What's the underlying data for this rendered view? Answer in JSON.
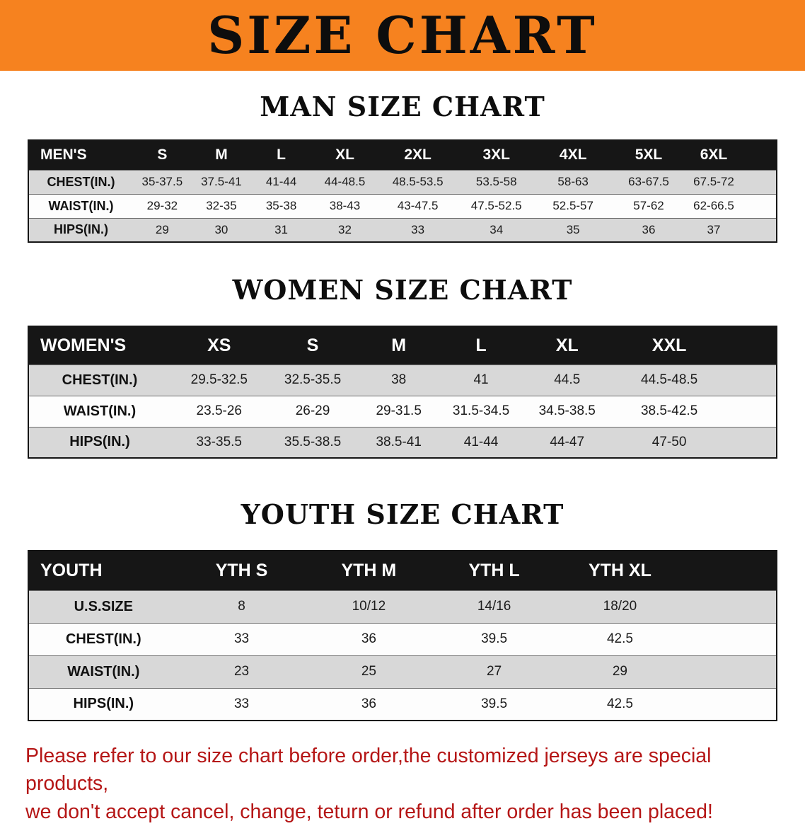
{
  "banner": {
    "title": "SIZE CHART"
  },
  "sections": {
    "men": {
      "heading": "MAN SIZE CHART"
    },
    "women": {
      "heading": "WOMEN SIZE CHART"
    },
    "youth": {
      "heading": "YOUTH SIZE CHART"
    }
  },
  "tables": {
    "men": {
      "header": [
        "MEN'S",
        "S",
        "M",
        "L",
        "XL",
        "2XL",
        "3XL",
        "4XL",
        "5XL",
        "6XL"
      ],
      "rows": [
        [
          "CHEST(IN.)",
          "35-37.5",
          "37.5-41",
          "41-44",
          "44-48.5",
          "48.5-53.5",
          "53.5-58",
          "58-63",
          "63-67.5",
          "67.5-72"
        ],
        [
          "WAIST(IN.)",
          "29-32",
          "32-35",
          "35-38",
          "38-43",
          "43-47.5",
          "47.5-52.5",
          "52.5-57",
          "57-62",
          "62-66.5"
        ],
        [
          "HIPS(IN.)",
          "29",
          "30",
          "31",
          "32",
          "33",
          "34",
          "35",
          "36",
          "37"
        ]
      ]
    },
    "women": {
      "header": [
        "WOMEN'S",
        "XS",
        "S",
        "M",
        "L",
        "XL",
        "XXL"
      ],
      "rows": [
        [
          "CHEST(IN.)",
          "29.5-32.5",
          "32.5-35.5",
          "38",
          "41",
          "44.5",
          "44.5-48.5"
        ],
        [
          "WAIST(IN.)",
          "23.5-26",
          "26-29",
          "29-31.5",
          "31.5-34.5",
          "34.5-38.5",
          "38.5-42.5"
        ],
        [
          "HIPS(IN.)",
          "33-35.5",
          "35.5-38.5",
          "38.5-41",
          "41-44",
          "44-47",
          "47-50"
        ]
      ]
    },
    "youth": {
      "header": [
        "YOUTH",
        "YTH S",
        "YTH M",
        "YTH L",
        "YTH XL"
      ],
      "rows": [
        [
          "U.S.SIZE",
          "8",
          "10/12",
          "14/16",
          "18/20"
        ],
        [
          "CHEST(IN.)",
          "33",
          "36",
          "39.5",
          "42.5"
        ],
        [
          "WAIST(IN.)",
          "23",
          "25",
          "27",
          "29"
        ],
        [
          "HIPS(IN.)",
          "33",
          "36",
          "39.5",
          "42.5"
        ]
      ]
    }
  },
  "disclaimer": {
    "line1": "Please refer to our size chart before order,the customized jerseys are special products,",
    "line2": "we don't accept cancel, change, teturn or refund after order has been placed!"
  },
  "colors": {
    "banner_orange": "#F6821F",
    "table_header_black": "#161616",
    "row_gray": "#d8d8d8",
    "disclaimer_red": "#B51616"
  }
}
